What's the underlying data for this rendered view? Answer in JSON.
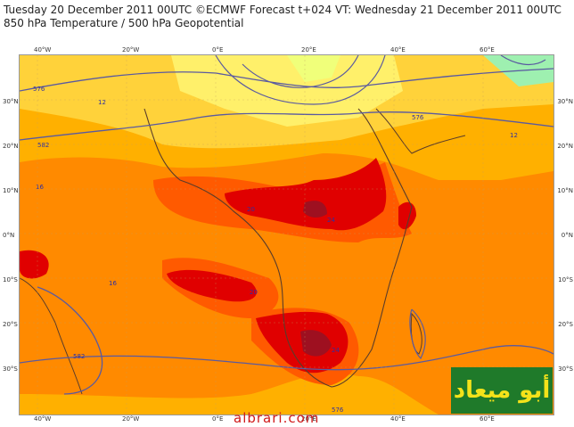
{
  "header": {
    "line1": "Tuesday 20 December 2011 00UTC ©ECMWF Forecast t+024 VT: Wednesday 21 December 2011 00UTC",
    "line2": "850 hPa Temperature / 500 hPa Geopotential"
  },
  "map": {
    "top_labels": [
      "40°W",
      "20°W",
      "0°E",
      "20°E",
      "40°E",
      "60°E"
    ],
    "bottom_labels": [
      "40°W",
      "20°W",
      "0°E",
      "20°E",
      "40°E",
      "60°E"
    ],
    "left_labels": [
      "30°N",
      "20°N",
      "10°N",
      "0°N",
      "10°S",
      "20°S",
      "30°S"
    ],
    "right_labels": [
      "30°N",
      "20°N",
      "10°N",
      "0°N",
      "10°S",
      "20°S",
      "30°S"
    ],
    "temperature_contours": [
      "12",
      "16",
      "20",
      "24",
      "12",
      "16",
      "20",
      "24"
    ],
    "geopotential_contours": [
      "576",
      "582",
      "576",
      "582",
      "576"
    ],
    "colors": {
      "cold": "#ffd23a",
      "mild": "#ffb000",
      "warm": "#ff8a00",
      "hot": "#ff5a00",
      "hottest": "#e00000",
      "extreme": "#9e1020",
      "coast": "#5a3c2a",
      "geo": "#5a5aa0"
    }
  },
  "watermark": "albrari.com",
  "logo": "أبو ميعاد"
}
